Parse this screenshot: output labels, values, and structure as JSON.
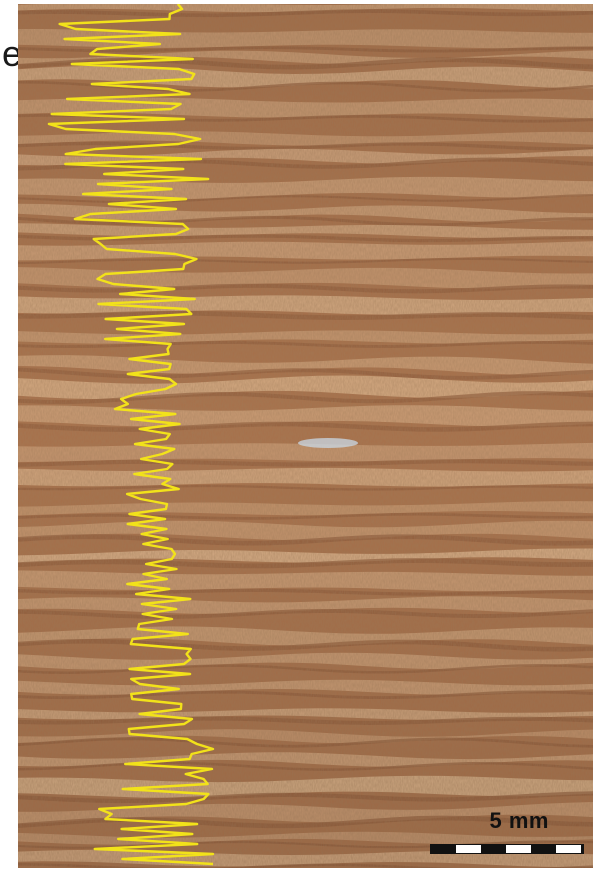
{
  "figure": {
    "panel_label": "e",
    "scale_bar": {
      "label": "5 mm"
    },
    "colors": {
      "background": "#ffffff",
      "stone_dark": "#8e5a39",
      "stone_mid": "#b07a53",
      "stone_light": "#d9b089",
      "trace": "#f2e21a",
      "scalebar_dark": "#111111",
      "scalebar_light": "#ffffff"
    }
  }
}
